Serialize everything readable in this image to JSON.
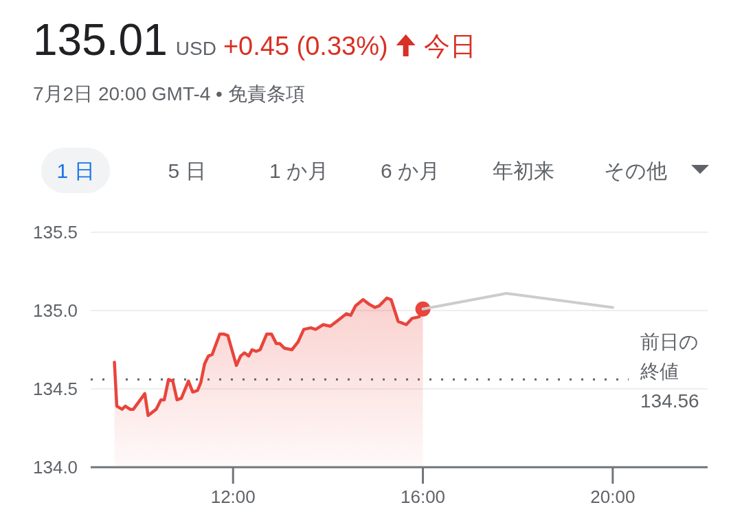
{
  "chart_data": {
    "type": "area",
    "title": "135.01",
    "subtitle": "7月2日 20:00 GMT-4 • 免責条項",
    "annotations": [
      "USD",
      "+0.45 (0.33%)",
      "今日",
      "1 日",
      "5 日",
      "1 か月",
      "6 か月",
      "年初来",
      "その他",
      "134.56"
    ],
    "xlim": [
      9,
      22
    ],
    "ylim": [
      134,
      135.5
    ],
    "xticks": [
      {
        "value": 12,
        "label": "12:00"
      },
      {
        "value": 16,
        "label": "16:00"
      },
      {
        "value": 20,
        "label": "20:00"
      }
    ],
    "yticks": [
      {
        "value": 134,
        "label": "134.0"
      },
      {
        "value": 134.5,
        "label": "134.5"
      },
      {
        "value": 135,
        "label": "135.0"
      },
      {
        "value": 135.5,
        "label": "135.5"
      }
    ],
    "grid": "y",
    "ref_lines": [
      {
        "axis": "y",
        "value": 134.56,
        "label": "前日の終値",
        "color": "#5f6368",
        "line_style": "dotted"
      }
    ],
    "series": [
      {
        "type": "area",
        "color": "#e8453c",
        "x": [
          9.5,
          9.55,
          9.66,
          9.73,
          9.83,
          9.9,
          10.14,
          10.21,
          10.38,
          10.48,
          10.55,
          10.64,
          10.73,
          10.82,
          10.91,
          11.06,
          11.15,
          11.25,
          11.32,
          11.4,
          11.48,
          11.56,
          11.72,
          11.8,
          11.89,
          12.07,
          12.16,
          12.24,
          12.33,
          12.4,
          12.49,
          12.57,
          12.71,
          12.81,
          12.91,
          12.98,
          13.08,
          13.24,
          13.37,
          13.49,
          13.64,
          13.74,
          13.9,
          14.05,
          14.22,
          14.39,
          14.48,
          14.58,
          14.74,
          14.87,
          14.99,
          15.08,
          15.24,
          15.33,
          15.48,
          15.65,
          15.77,
          15.92,
          16
        ],
        "values": [
          134.67,
          134.39,
          134.37,
          134.39,
          134.37,
          134.37,
          134.47,
          134.33,
          134.37,
          134.43,
          134.43,
          134.56,
          134.55,
          134.43,
          134.44,
          134.55,
          134.48,
          134.49,
          134.54,
          134.66,
          134.71,
          134.72,
          134.85,
          134.85,
          134.84,
          134.65,
          134.71,
          134.73,
          134.71,
          134.75,
          134.74,
          134.75,
          134.85,
          134.85,
          134.79,
          134.79,
          134.76,
          134.75,
          134.8,
          134.88,
          134.89,
          134.88,
          134.91,
          134.9,
          134.94,
          134.98,
          134.97,
          135.03,
          135.07,
          135.04,
          135.02,
          135.03,
          135.08,
          135.07,
          134.93,
          134.91,
          134.95,
          134.96,
          135.01
        ]
      },
      {
        "type": "line",
        "color": "#cccccc",
        "x": [
          16,
          17.76,
          20
        ],
        "values": [
          135.01,
          135.11,
          135.02
        ]
      }
    ]
  }
}
